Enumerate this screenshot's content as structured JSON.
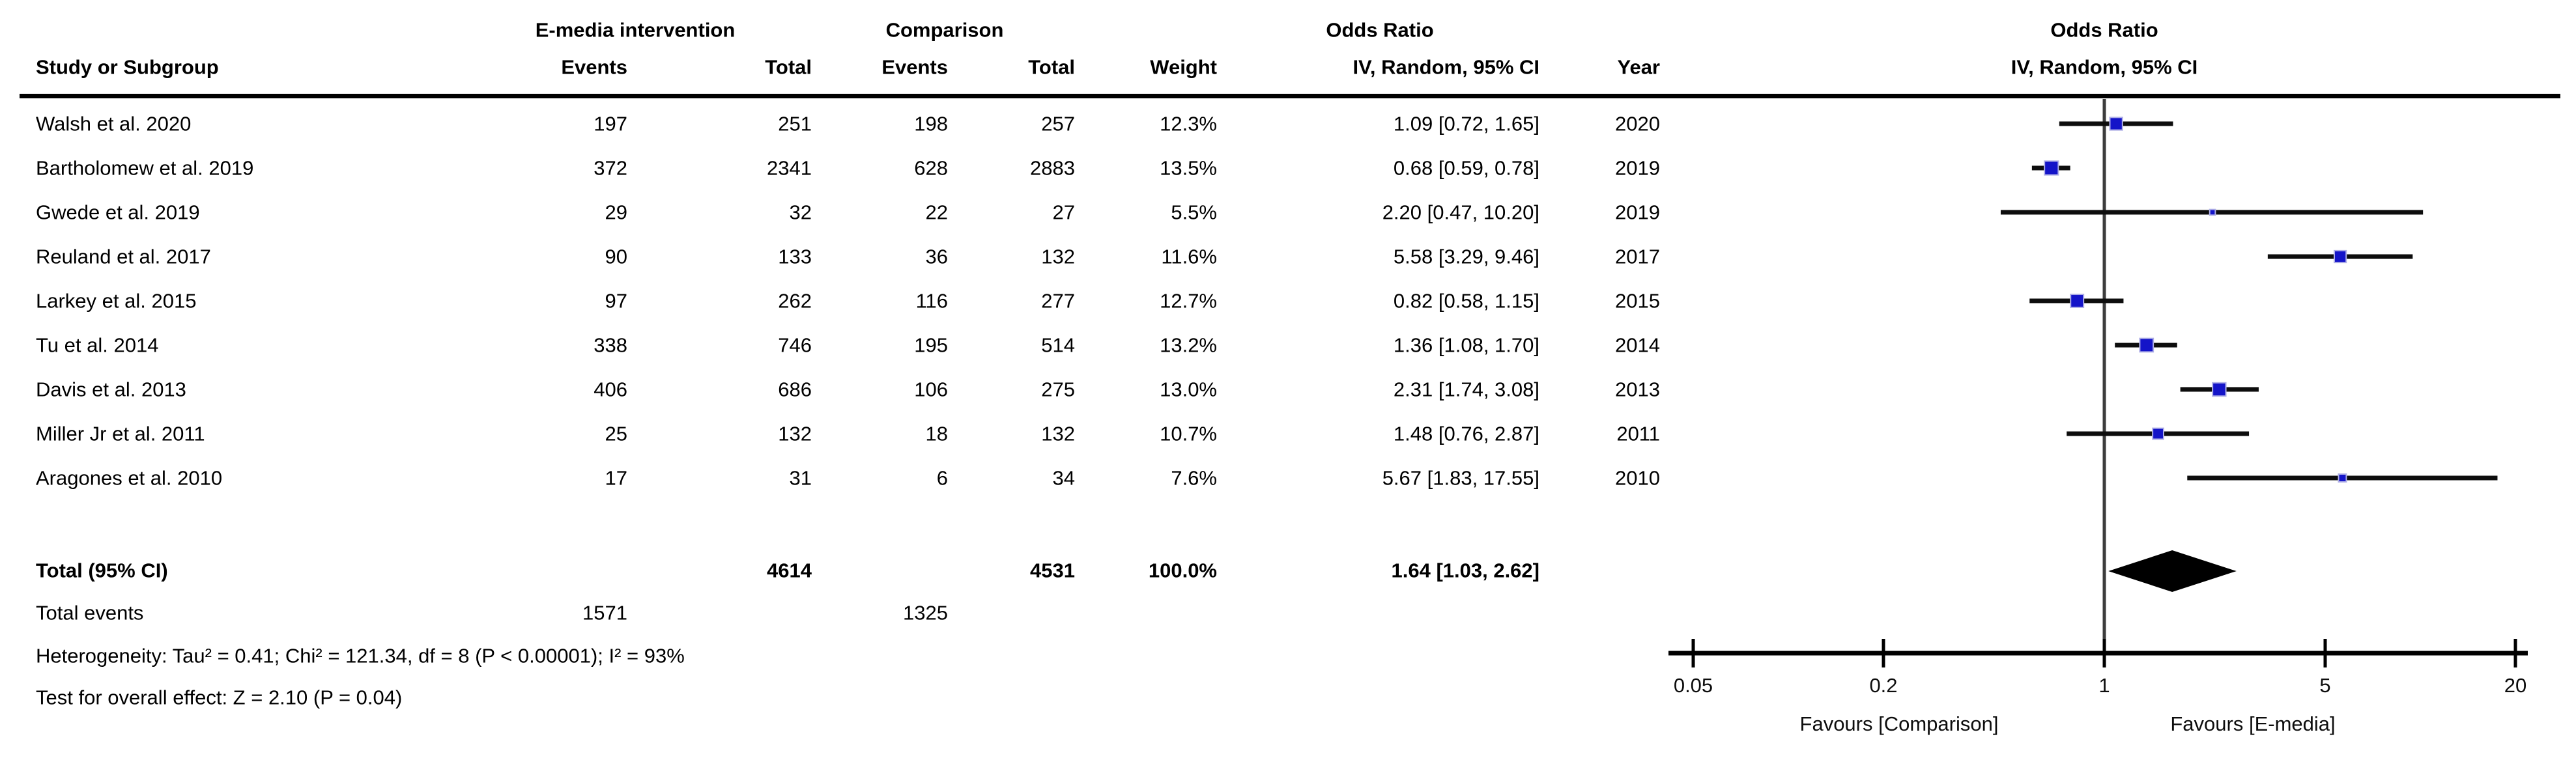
{
  "table": {
    "group_headers": {
      "intervention": "E-media intervention",
      "comparison": "Comparison",
      "odds_ratio": "Odds Ratio",
      "odds_ratio_plot": "Odds Ratio"
    },
    "col_headers": {
      "study": "Study or Subgroup",
      "events1": "Events",
      "total1": "Total",
      "events2": "Events",
      "total2": "Total",
      "weight": "Weight",
      "or_ci": "IV, Random, 95% CI",
      "year": "Year",
      "or_ci_plot": "IV, Random, 95% CI"
    },
    "total_row": {
      "label": "Total (95% CI)",
      "total1": "4614",
      "total2": "4531",
      "weight": "100.0%",
      "or_ci": "1.64 [1.03, 2.62]"
    },
    "total_events_row": {
      "label": "Total events",
      "events1": "1571",
      "events2": "1325"
    },
    "heterogeneity": "Heterogeneity: Tau² = 0.41; Chi² = 121.34, df = 8 (P < 0.00001); I² = 93%",
    "overall_effect": "Test for overall effect: Z = 2.10 (P = 0.04)"
  },
  "chart_data": {
    "type": "forest",
    "effect_measure": "Odds Ratio",
    "model": "IV, Random, 95% CI",
    "x_scale": "log",
    "x_range": [
      0.05,
      20
    ],
    "axis_ticks": [
      {
        "value": 0.05,
        "label": "0.05"
      },
      {
        "value": 0.2,
        "label": "0.2"
      },
      {
        "value": 1,
        "label": "1"
      },
      {
        "value": 5,
        "label": "5"
      },
      {
        "value": 20,
        "label": "20"
      }
    ],
    "favours_left": "Favours [Comparison]",
    "favours_right": "Favours [E-media]",
    "studies": [
      {
        "study": "Walsh et al. 2020",
        "events1": "197",
        "total1": "251",
        "events2": "198",
        "total2": "257",
        "weight": "12.3%",
        "weight_pct": 12.3,
        "or_ci": "1.09 [0.72, 1.65]",
        "or": 1.09,
        "ci_low": 0.72,
        "ci_high": 1.65,
        "year": "2020"
      },
      {
        "study": "Bartholomew et al. 2019",
        "events1": "372",
        "total1": "2341",
        "events2": "628",
        "total2": "2883",
        "weight": "13.5%",
        "weight_pct": 13.5,
        "or_ci": "0.68 [0.59, 0.78]",
        "or": 0.68,
        "ci_low": 0.59,
        "ci_high": 0.78,
        "year": "2019"
      },
      {
        "study": "Gwede et al. 2019",
        "events1": "29",
        "total1": "32",
        "events2": "22",
        "total2": "27",
        "weight": "5.5%",
        "weight_pct": 5.5,
        "or_ci": "2.20 [0.47, 10.20]",
        "or": 2.2,
        "ci_low": 0.47,
        "ci_high": 10.2,
        "year": "2019"
      },
      {
        "study": "Reuland et al. 2017",
        "events1": "90",
        "total1": "133",
        "events2": "36",
        "total2": "132",
        "weight": "11.6%",
        "weight_pct": 11.6,
        "or_ci": "5.58 [3.29, 9.46]",
        "or": 5.58,
        "ci_low": 3.29,
        "ci_high": 9.46,
        "year": "2017"
      },
      {
        "study": "Larkey et al. 2015",
        "events1": "97",
        "total1": "262",
        "events2": "116",
        "total2": "277",
        "weight": "12.7%",
        "weight_pct": 12.7,
        "or_ci": "0.82 [0.58, 1.15]",
        "or": 0.82,
        "ci_low": 0.58,
        "ci_high": 1.15,
        "year": "2015"
      },
      {
        "study": "Tu et al. 2014",
        "events1": "338",
        "total1": "746",
        "events2": "195",
        "total2": "514",
        "weight": "13.2%",
        "weight_pct": 13.2,
        "or_ci": "1.36 [1.08, 1.70]",
        "or": 1.36,
        "ci_low": 1.08,
        "ci_high": 1.7,
        "year": "2014"
      },
      {
        "study": "Davis et al. 2013",
        "events1": "406",
        "total1": "686",
        "events2": "106",
        "total2": "275",
        "weight": "13.0%",
        "weight_pct": 13.0,
        "or_ci": "2.31 [1.74, 3.08]",
        "or": 2.31,
        "ci_low": 1.74,
        "ci_high": 3.08,
        "year": "2013"
      },
      {
        "study": "Miller Jr et al. 2011",
        "events1": "25",
        "total1": "132",
        "events2": "18",
        "total2": "132",
        "weight": "10.7%",
        "weight_pct": 10.7,
        "or_ci": "1.48 [0.76, 2.87]",
        "or": 1.48,
        "ci_low": 0.76,
        "ci_high": 2.87,
        "year": "2011"
      },
      {
        "study": "Aragones et al. 2010",
        "events1": "17",
        "total1": "31",
        "events2": "6",
        "total2": "34",
        "weight": "7.6%",
        "weight_pct": 7.6,
        "or_ci": "5.67 [1.83, 17.55]",
        "or": 5.67,
        "ci_low": 1.83,
        "ci_high": 17.55,
        "year": "2010"
      }
    ],
    "total": {
      "or": 1.64,
      "ci_low": 1.03,
      "ci_high": 2.62
    },
    "colors": {
      "marker_fill": "#1414C8",
      "marker_edge": "#AEAEE6",
      "ci_line": "#0D0D0D",
      "diamond": "#000000",
      "axis": "#000000",
      "null_line": "#3C3C3C"
    }
  }
}
